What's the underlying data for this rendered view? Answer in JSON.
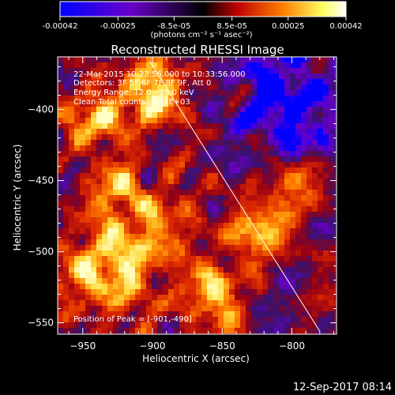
{
  "colorbar": {
    "tick_labels": [
      "-0.00042",
      "-0.00025",
      "-8.5e-05",
      "8.5e-05",
      "0.00025",
      "0.00042"
    ],
    "tick_values": [
      -0.00042,
      -0.00025,
      -8.5e-05,
      8.5e-05,
      0.00025,
      0.00042
    ],
    "range": [
      -0.00042,
      0.00042
    ],
    "units_text": "(photons cm⁻² s⁻¹ asec⁻²)",
    "colors": [
      "#0000ff",
      "#6a00c8",
      "#000000",
      "#c00000",
      "#ff8000",
      "#ffff60",
      "#ffffff"
    ]
  },
  "chart_data": {
    "type": "heatmap",
    "title": "Reconstructed RHESSI Image",
    "xlabel": "Heliocentric X (arcsec)",
    "ylabel": "Heliocentric Y (arcsec)",
    "xlim": [
      -968,
      -768
    ],
    "ylim": [
      -558,
      -363
    ],
    "xticks": [
      -950,
      -900,
      -850,
      -800
    ],
    "yticks": [
      -400,
      -450,
      -500,
      -550
    ],
    "xtick_labels": [
      "−950",
      "−900",
      "−850",
      "−800"
    ],
    "ytick_labels": [
      "−400",
      "−450",
      "−500",
      "−550"
    ],
    "limb_line": [
      [
        -902,
        -366
      ],
      [
        -780,
        -556
      ]
    ],
    "peak": [
      -901,
      -490
    ]
  },
  "annotations": [
    "22-Mar-2015 10:23:56.000 to 10:33:56.000",
    "Detectors: 3F 5F 6F 7F 8F 9F, Att 0",
    "Energy Range: 12.0 - 25.0 keV",
    "Clean     Total counts: 5.91E+03"
  ],
  "peak_label": "Position of Peak = [-901,-490]",
  "timestamp": "12-Sep-2017 08:14"
}
